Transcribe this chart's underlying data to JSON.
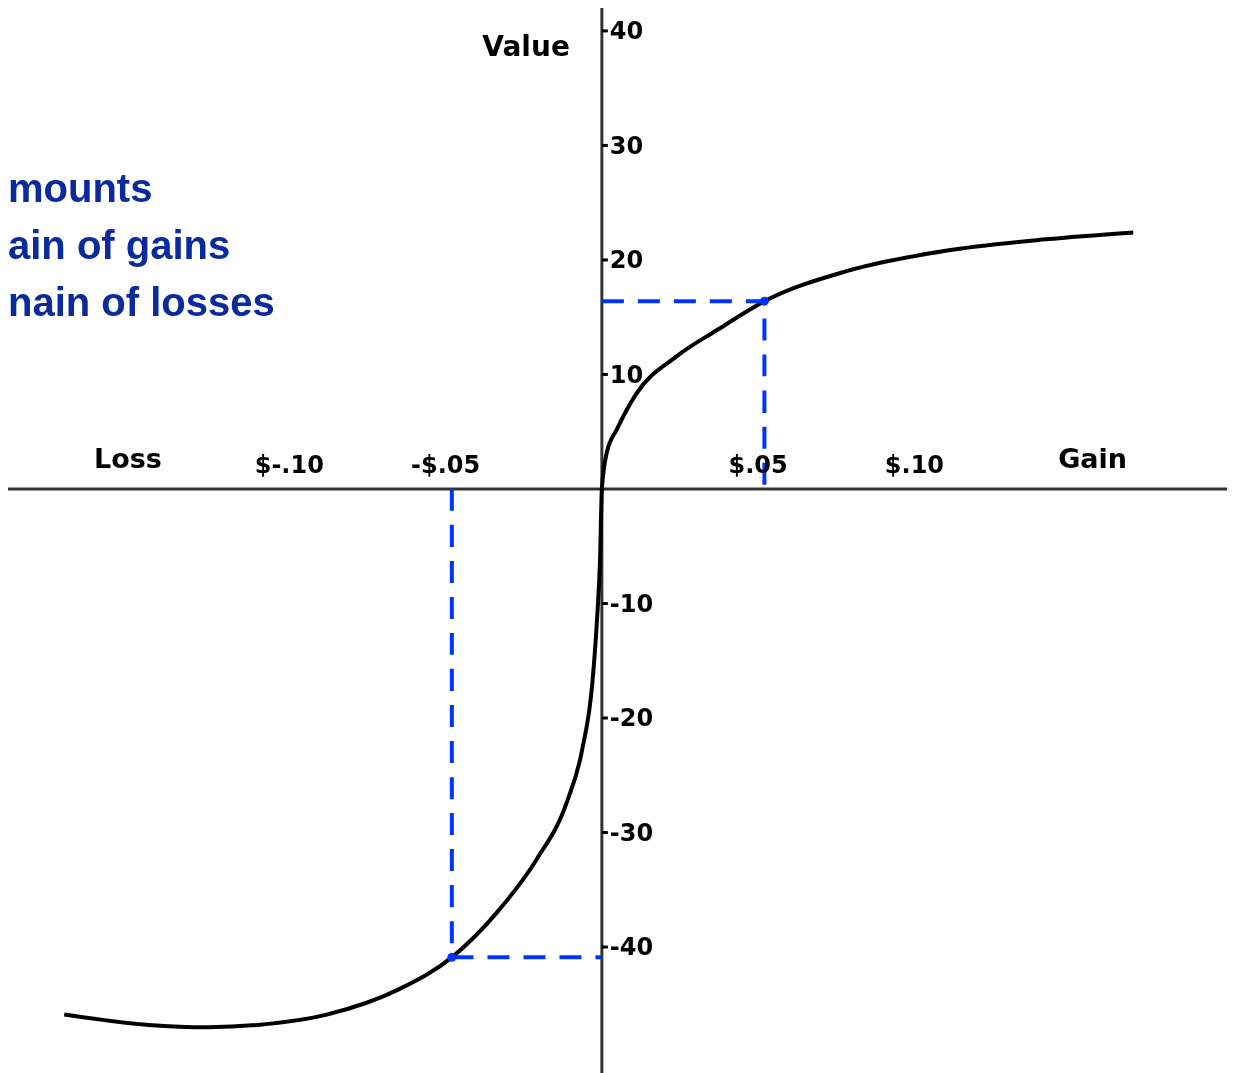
{
  "chart_data": {
    "type": "line",
    "ylabel": "Value",
    "annotations": [
      "Loss",
      "Gain",
      "mounts",
      "ain of gains",
      "nain of losses"
    ],
    "xlim": [
      -0.19,
      0.2
    ],
    "ylim": [
      -51,
      42
    ],
    "xticks": [
      {
        "value": -0.1,
        "label": "$-.10"
      },
      {
        "value": -0.05,
        "label": "-$.05"
      },
      {
        "value": 0.05,
        "label": "$.05"
      },
      {
        "value": 0.1,
        "label": "$.10"
      }
    ],
    "yticks": [
      -40,
      -30,
      -20,
      -10,
      10,
      20,
      30,
      40
    ],
    "series": [
      {
        "color": "#000000",
        "line_style": "solid",
        "marker": "none",
        "x": [
          -0.172,
          -0.145,
          -0.126,
          -0.11,
          -0.088,
          -0.065,
          -0.048,
          -0.033,
          -0.021,
          -0.011,
          -0.0064,
          -0.003,
          -0.0016,
          -0.0006,
          0,
          0.0016,
          0.0048,
          0.011,
          0.024,
          0.037,
          0.052,
          0.078,
          0.11,
          0.142,
          0.17
        ],
        "values": [
          -45.9,
          -46.8,
          -47,
          -46.8,
          -45.9,
          -43.7,
          -40.9,
          -36.8,
          -32.4,
          -27.2,
          -22.9,
          -16.8,
          -11.6,
          -6.3,
          0,
          3.2,
          5.2,
          8.3,
          11.6,
          13.9,
          16.4,
          19,
          20.8,
          21.8,
          22.4
        ]
      },
      {
        "color": "#0033ff",
        "line_style": "dashed",
        "marker": "none",
        "x": [
          0,
          0.052,
          0.052
        ],
        "values": [
          16.4,
          16.4,
          0
        ]
      },
      {
        "color": "#0033ff",
        "line_style": "dashed",
        "marker": "none",
        "x": [
          -0.048,
          -0.048,
          0
        ],
        "values": [
          0,
          -40.9,
          -40.9
        ]
      },
      {
        "type": "scatter",
        "color": "#0033ff",
        "marker": "circle",
        "x": [
          0.052,
          -0.048
        ],
        "values": [
          16.4,
          -40.9
        ]
      }
    ]
  }
}
